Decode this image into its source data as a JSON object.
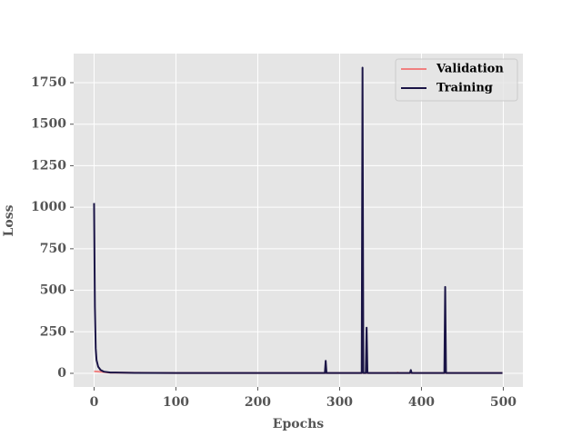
{
  "chart_data": {
    "type": "line",
    "x_label": "Epochs",
    "y_label": "Loss",
    "xlim": [
      -24.95,
      523.95
    ],
    "ylim": [
      -82,
      1925
    ],
    "xticks": [
      0,
      100,
      200,
      300,
      400,
      500
    ],
    "yticks": [
      0,
      250,
      500,
      750,
      1000,
      1250,
      1500,
      1750
    ],
    "grid": true,
    "legend": "upper right",
    "series": [
      {
        "name": "Validation",
        "color": "#f08080",
        "x": [
          0,
          10,
          20,
          100,
          370,
          371,
          372,
          499
        ],
        "values": [
          12,
          8,
          4,
          2,
          2,
          5,
          2,
          2
        ]
      },
      {
        "name": "Training",
        "color": "#1a1446",
        "x": [
          0,
          1,
          2,
          3,
          5,
          8,
          12,
          20,
          50,
          100,
          200,
          282,
          283,
          284,
          327,
          328,
          329,
          332,
          333,
          334,
          386,
          387,
          388,
          428,
          429,
          430,
          499
        ],
        "values": [
          1025,
          400,
          150,
          80,
          40,
          20,
          10,
          5,
          3,
          2,
          2,
          2,
          75,
          2,
          2,
          1840,
          2,
          2,
          275,
          2,
          2,
          20,
          2,
          2,
          520,
          2,
          2
        ]
      }
    ]
  }
}
